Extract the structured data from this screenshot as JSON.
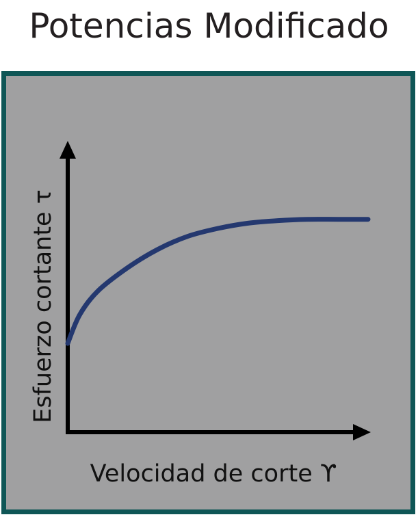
{
  "title": "Potencias Modificado",
  "chart_data": {
    "type": "line",
    "xlabel": "Velocidad de corte ϒ",
    "ylabel": "Esfuerzo cortante τ",
    "x": [
      0,
      0.04,
      0.1,
      0.2,
      0.3,
      0.4,
      0.5,
      0.6,
      0.7,
      0.8,
      0.9,
      1.0
    ],
    "y": [
      0.34,
      0.45,
      0.54,
      0.63,
      0.7,
      0.75,
      0.78,
      0.8,
      0.81,
      0.815,
      0.815,
      0.815
    ],
    "xlim": [
      0,
      1
    ],
    "ylim": [
      0,
      1
    ],
    "grid": false,
    "colors": {
      "curve": "#24386f",
      "panel": "#a0a0a1",
      "border": "#0f5656",
      "axis": "#000000"
    }
  }
}
